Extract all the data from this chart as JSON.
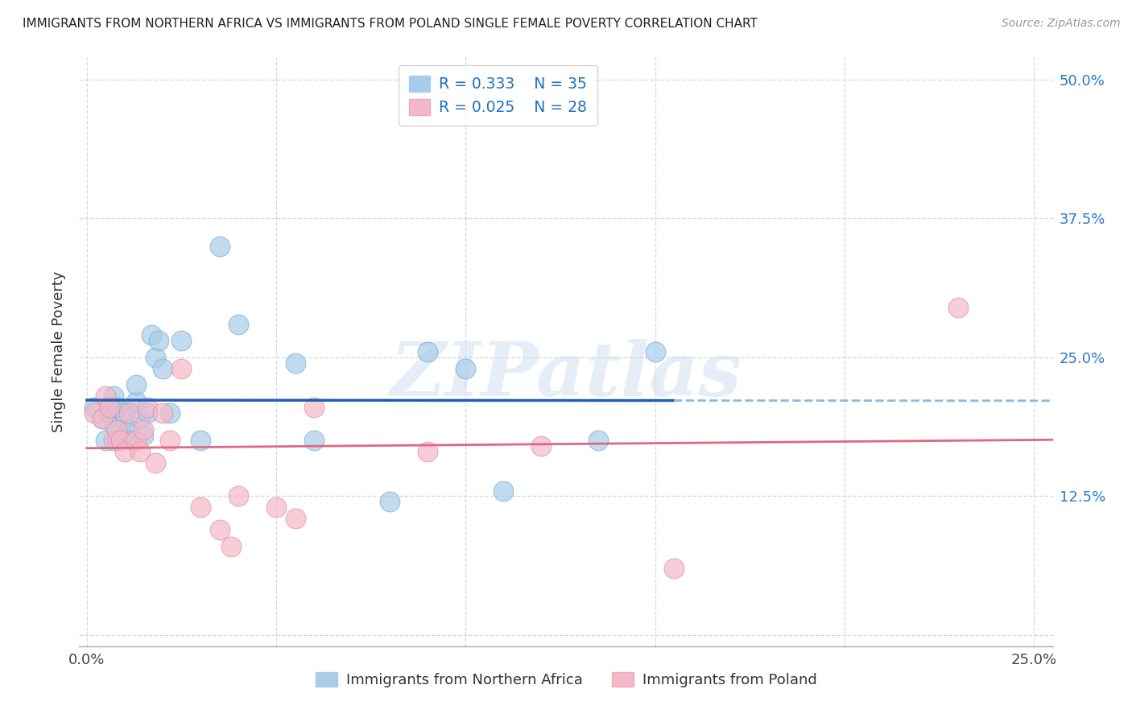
{
  "title": "IMMIGRANTS FROM NORTHERN AFRICA VS IMMIGRANTS FROM POLAND SINGLE FEMALE POVERTY CORRELATION CHART",
  "source": "Source: ZipAtlas.com",
  "ylabel_label": "Single Female Poverty",
  "x_ticks": [
    0.0,
    0.05,
    0.1,
    0.15,
    0.2,
    0.25
  ],
  "x_tick_labels": [
    "0.0%",
    "",
    "",
    "",
    "",
    "25.0%"
  ],
  "y_ticks": [
    0.0,
    0.125,
    0.25,
    0.375,
    0.5
  ],
  "y_tick_labels": [
    "",
    "12.5%",
    "25.0%",
    "37.5%",
    "50.0%"
  ],
  "xlim": [
    -0.002,
    0.255
  ],
  "ylim": [
    -0.01,
    0.52
  ],
  "blue_R": "0.333",
  "blue_N": "35",
  "pink_R": "0.025",
  "pink_N": "28",
  "legend_labels": [
    "Immigrants from Northern Africa",
    "Immigrants from Poland"
  ],
  "blue_color": "#a8cce8",
  "pink_color": "#f4b8c8",
  "trendline_blue_solid_color": "#2060b0",
  "trendline_blue_dash_color": "#90b8d8",
  "trendline_pink_color": "#e06880",
  "watermark": "ZIPatlas",
  "blue_scatter_x": [
    0.002,
    0.004,
    0.005,
    0.006,
    0.007,
    0.007,
    0.008,
    0.008,
    0.009,
    0.01,
    0.01,
    0.011,
    0.012,
    0.013,
    0.013,
    0.014,
    0.015,
    0.016,
    0.017,
    0.018,
    0.019,
    0.02,
    0.022,
    0.025,
    0.03,
    0.035,
    0.04,
    0.055,
    0.06,
    0.08,
    0.09,
    0.1,
    0.11,
    0.135,
    0.15
  ],
  "blue_scatter_y": [
    0.205,
    0.195,
    0.175,
    0.2,
    0.215,
    0.19,
    0.175,
    0.205,
    0.185,
    0.195,
    0.2,
    0.185,
    0.175,
    0.21,
    0.225,
    0.195,
    0.18,
    0.2,
    0.27,
    0.25,
    0.265,
    0.24,
    0.2,
    0.265,
    0.175,
    0.35,
    0.28,
    0.245,
    0.175,
    0.12,
    0.255,
    0.24,
    0.13,
    0.175,
    0.255
  ],
  "pink_scatter_x": [
    0.002,
    0.004,
    0.005,
    0.006,
    0.007,
    0.008,
    0.009,
    0.01,
    0.011,
    0.013,
    0.014,
    0.015,
    0.016,
    0.018,
    0.02,
    0.022,
    0.025,
    0.03,
    0.035,
    0.038,
    0.04,
    0.05,
    0.055,
    0.06,
    0.09,
    0.12,
    0.155,
    0.23
  ],
  "pink_scatter_y": [
    0.2,
    0.195,
    0.215,
    0.205,
    0.175,
    0.185,
    0.175,
    0.165,
    0.2,
    0.175,
    0.165,
    0.185,
    0.205,
    0.155,
    0.2,
    0.175,
    0.24,
    0.115,
    0.095,
    0.08,
    0.125,
    0.115,
    0.105,
    0.205,
    0.165,
    0.17,
    0.06,
    0.295
  ],
  "background_color": "#ffffff",
  "grid_color": "#d0d8e8"
}
